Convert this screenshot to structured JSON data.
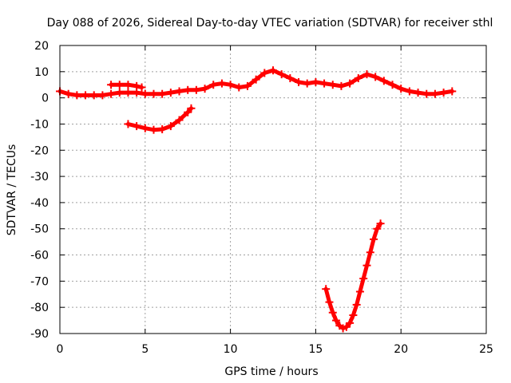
{
  "chart_data": {
    "type": "scatter",
    "title": "Day 088 of 2026, Sidereal Day-to-day VTEC variation (SDTVAR) for receiver sthl",
    "xlabel": "GPS time / hours",
    "ylabel": "SDTVAR / TECUs",
    "xlim": [
      0,
      25
    ],
    "ylim": [
      -90,
      20
    ],
    "xticks": [
      0,
      5,
      10,
      15,
      20,
      25
    ],
    "yticks": [
      20,
      10,
      0,
      -10,
      -20,
      -30,
      -40,
      -50,
      -60,
      -70,
      -80,
      -90
    ],
    "grid": true,
    "marker_color": "#ff0000",
    "series": [
      {
        "name": "sthl main",
        "x": [
          0.0,
          0.5,
          1.0,
          1.5,
          2.0,
          2.5,
          3.0,
          3.5,
          4.0,
          4.5,
          5.0,
          5.5,
          6.0,
          6.5,
          7.0,
          7.5,
          8.0,
          8.5,
          9.0,
          9.5,
          10.0,
          10.5,
          11.0,
          11.5,
          12.0,
          12.5,
          13.0,
          13.5,
          14.0,
          14.5,
          15.0,
          15.5,
          16.0,
          16.5,
          17.0,
          17.5,
          18.0,
          18.5,
          19.0,
          19.5,
          20.0,
          20.5,
          21.0,
          21.5,
          22.0,
          22.5,
          23.0
        ],
        "y": [
          2.5,
          1.5,
          1.0,
          1.0,
          1.0,
          1.0,
          1.5,
          2.0,
          2.0,
          2.0,
          1.5,
          1.5,
          1.5,
          2.0,
          2.5,
          3.0,
          3.0,
          3.5,
          5.0,
          5.5,
          5.0,
          4.0,
          4.5,
          7.0,
          9.5,
          10.5,
          9.0,
          7.5,
          6.0,
          5.5,
          6.0,
          5.5,
          5.0,
          4.5,
          5.5,
          7.5,
          9.0,
          8.0,
          6.5,
          5.0,
          3.5,
          2.5,
          2.0,
          1.5,
          1.5,
          2.0,
          2.5
        ]
      },
      {
        "name": "sthl short arc 1",
        "x": [
          3.0,
          3.5,
          4.0,
          4.5,
          4.8
        ],
        "y": [
          5.0,
          5.0,
          5.0,
          4.5,
          4.0
        ]
      },
      {
        "name": "sthl short arc 2",
        "x": [
          4.0,
          4.5,
          5.0,
          5.5,
          6.0,
          6.5,
          7.0,
          7.5,
          7.7
        ],
        "y": [
          -10.0,
          -10.8,
          -11.6,
          -12.2,
          -12.0,
          -10.8,
          -8.5,
          -5.5,
          -4.0
        ]
      },
      {
        "name": "sthl deep arc",
        "x": [
          15.6,
          15.8,
          16.0,
          16.2,
          16.4,
          16.6,
          16.8,
          17.0,
          17.2,
          17.4,
          17.6,
          17.8,
          18.0,
          18.2,
          18.4,
          18.6,
          18.8
        ],
        "y": [
          -73,
          -78,
          -82,
          -85,
          -87,
          -88,
          -87.5,
          -86,
          -83,
          -79,
          -74,
          -69,
          -64,
          -59,
          -54,
          -50,
          -48
        ]
      }
    ]
  }
}
